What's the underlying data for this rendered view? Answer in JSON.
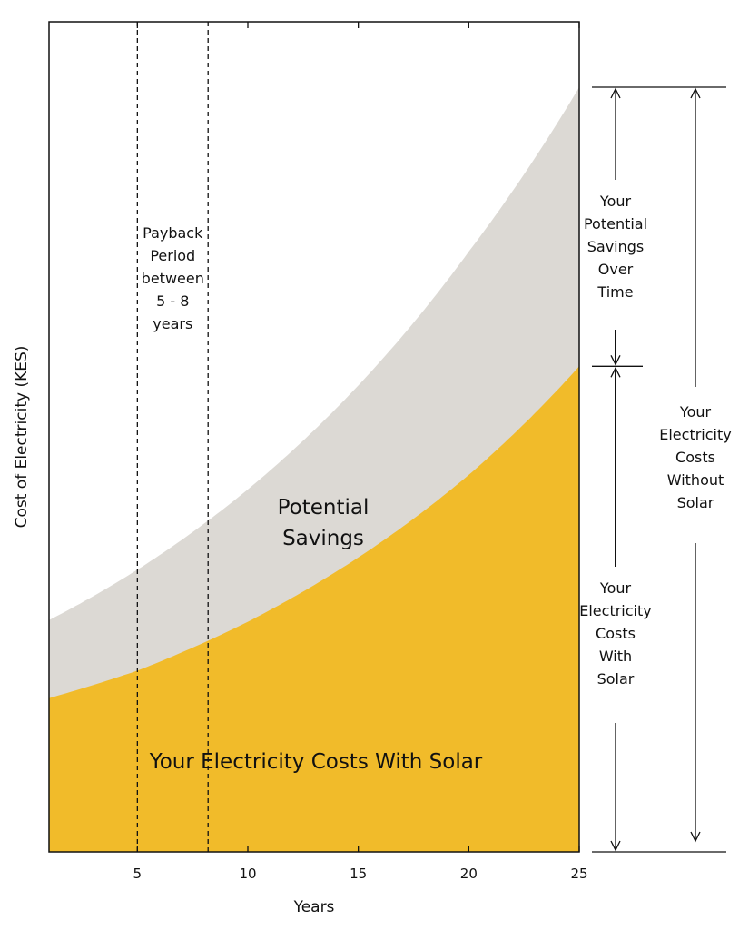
{
  "chart_data": {
    "type": "area",
    "xlabel": "Years",
    "ylabel": "Cost of Electricity (KES)",
    "xlim": [
      1,
      25
    ],
    "ylim": [
      0,
      100
    ],
    "x_ticks": [
      5,
      10,
      15,
      20,
      25
    ],
    "series": [
      {
        "name": "Your Electricity Costs With Solar",
        "color": "#f1bb2a",
        "x": [
          1,
          5,
          10,
          15,
          20,
          25
        ],
        "y": [
          20.1,
          23.7,
          30.1,
          38.5,
          49.3,
          63.5
        ]
      },
      {
        "name": "Potential Savings",
        "color": "#dcd9d4",
        "x": [
          1,
          5,
          10,
          15,
          20,
          25
        ],
        "y": [
          30.3,
          36.9,
          47.4,
          61.0,
          78.5,
          100.0
        ]
      }
    ],
    "annotations": {
      "payback": {
        "x_range": [
          5,
          8.2
        ],
        "lines": [
          "Payback",
          "Period",
          "between",
          "5 - 8",
          "years"
        ]
      },
      "savings_label": [
        "Potential",
        "Savings"
      ],
      "with_solar_label": "Your Electricity Costs With Solar",
      "potential_savings_over_time": [
        "Your",
        "Potential",
        "Savings",
        "Over",
        "Time"
      ],
      "costs_with_solar": [
        "Your",
        "Electricity",
        "Costs",
        "With",
        "Solar"
      ],
      "costs_without_solar": [
        "Your",
        "Electricity",
        "Costs",
        "Without",
        "Solar"
      ]
    }
  }
}
